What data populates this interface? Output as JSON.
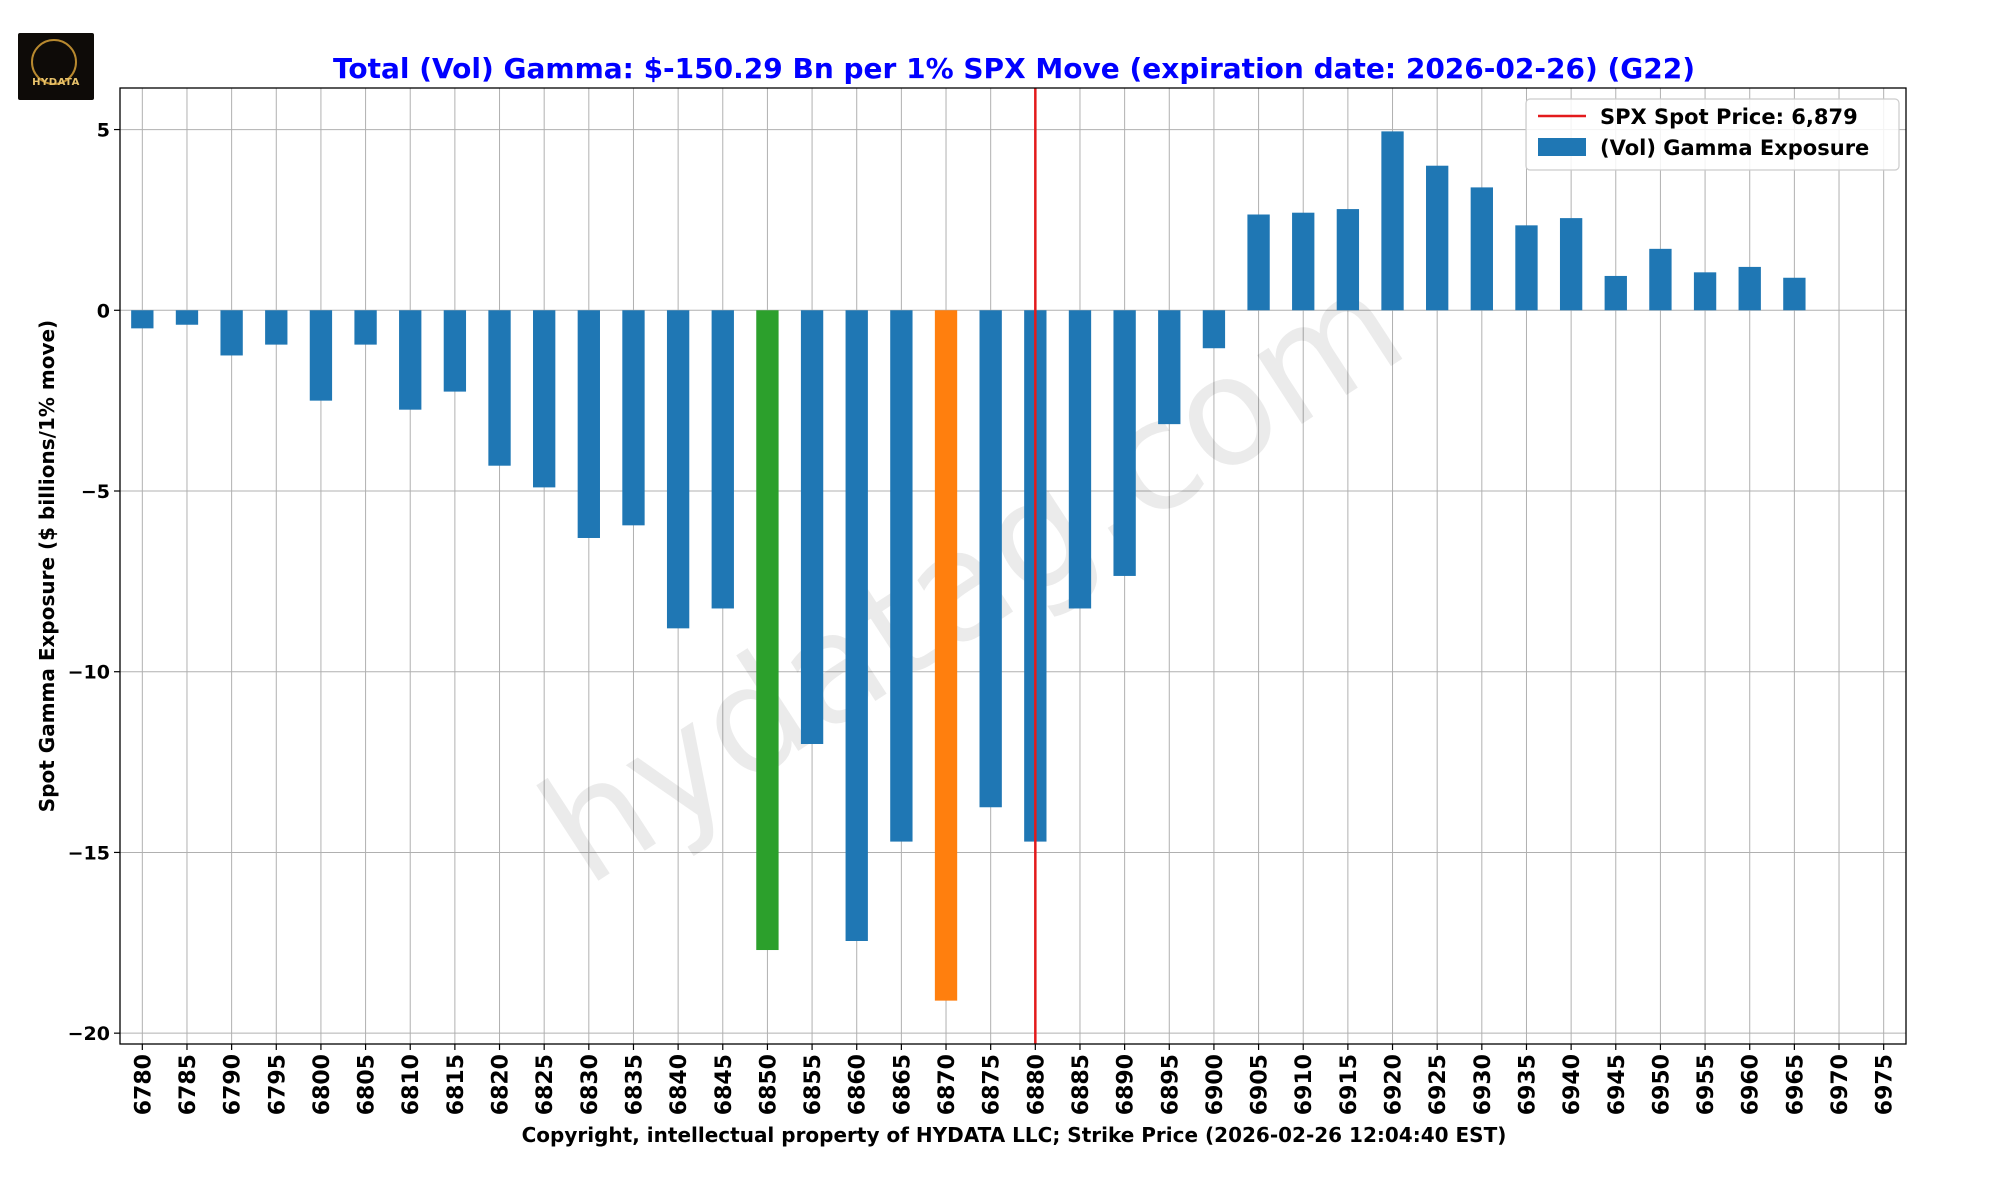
{
  "logo": {
    "text": "HYDATA",
    "icon": "wolf-logo-icon"
  },
  "watermark": "hydatag.com",
  "chart_data": {
    "type": "bar",
    "title": "Total (Vol) Gamma: $-150.29 Bn per 1% SPX Move (expiration date: 2026-02-26) (G22)",
    "xlabel": "Copyright, intellectual property of HYDATA LLC; Strike Price (2026-02-26 12:04:40 EST)",
    "ylabel": "Spot Gamma Exposure ($ billions/1% move)",
    "ylim": [
      -20.3,
      6.15
    ],
    "yticks": [
      5,
      0,
      -5,
      -10,
      -15,
      -20
    ],
    "ytick_labels": [
      "5",
      "0",
      "−5",
      "−10",
      "−15",
      "−20"
    ],
    "grid": true,
    "categories": [
      "6780",
      "6785",
      "6790",
      "6795",
      "6800",
      "6805",
      "6810",
      "6815",
      "6820",
      "6825",
      "6830",
      "6835",
      "6840",
      "6845",
      "6850",
      "6855",
      "6860",
      "6865",
      "6870",
      "6875",
      "6880",
      "6885",
      "6890",
      "6895",
      "6900",
      "6905",
      "6910",
      "6915",
      "6920",
      "6925",
      "6930",
      "6935",
      "6940",
      "6945",
      "6950",
      "6955",
      "6960",
      "6965",
      "6970",
      "6975"
    ],
    "values": [
      -0.5,
      -0.4,
      -1.25,
      -0.95,
      -2.5,
      -0.95,
      -2.75,
      -2.25,
      -4.3,
      -4.9,
      -6.3,
      -5.95,
      -8.8,
      -8.25,
      -17.7,
      -12.0,
      -17.45,
      -14.7,
      -19.1,
      -13.75,
      -14.7,
      -8.25,
      -7.35,
      -3.15,
      -1.05,
      2.65,
      2.7,
      2.8,
      4.95,
      4.0,
      3.4,
      2.35,
      2.55,
      0.95,
      1.7,
      1.05,
      1.2,
      0.9,
      0,
      0
    ],
    "colors": {
      "default": "#1f77b4",
      "min_bar": "#ff7f0e",
      "second_bar": "#2ca02c",
      "spot_line": "#e31a1c",
      "title": "#0000ff",
      "grid": "#b0b0b0"
    },
    "highlight": {
      "6850": "second_bar",
      "6870": "min_bar"
    },
    "spot_line": {
      "x": 6879,
      "draw_at_strike": "6880"
    },
    "legend": {
      "placement": "top-right",
      "entries": [
        {
          "type": "line",
          "color": "#e31a1c",
          "label": "SPX Spot Price: 6,879"
        },
        {
          "type": "bar",
          "color": "#1f77b4",
          "label": "(Vol) Gamma Exposure"
        }
      ]
    }
  }
}
